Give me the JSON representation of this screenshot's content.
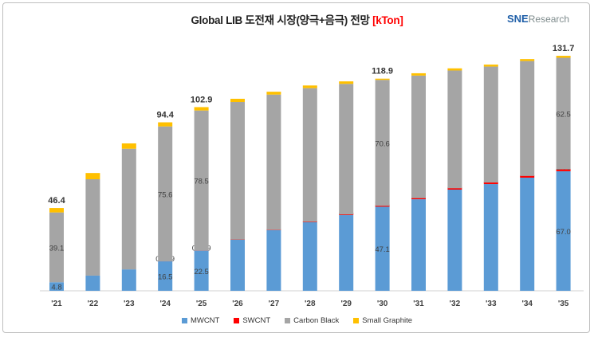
{
  "title": {
    "text": "Global LIB 도전재 시장(양극+음극) 전망",
    "unit": "[kTon]"
  },
  "logo": {
    "brand": "SNE",
    "suffix": "Research"
  },
  "chart_data": {
    "type": "bar",
    "stacked": true,
    "title": "Global LIB 도전재 시장(양극+음극) 전망 [kTon]",
    "xlabel": "",
    "ylabel": "",
    "ylim": [
      0,
      135
    ],
    "grid": false,
    "legend_position": "bottom",
    "categories": [
      "'21",
      "'22",
      "'23",
      "'24",
      "'25",
      "'26",
      "'27",
      "'28",
      "'29",
      "'30",
      "'31",
      "'32",
      "'33",
      "'34",
      "'35"
    ],
    "series": [
      {
        "name": "MWCNT",
        "color": "#5B9BD5",
        "values": [
          4.8,
          8.5,
          12.0,
          16.5,
          22.5,
          28.6,
          34.0,
          38.4,
          42.4,
          47.1,
          51.3,
          56.7,
          59.8,
          63.4,
          67.0
        ],
        "labels": [
          "4.8",
          null,
          null,
          "16.5",
          "22.5",
          null,
          null,
          null,
          null,
          "47.1",
          null,
          null,
          null,
          null,
          "67.0"
        ]
      },
      {
        "name": "SWCNT",
        "color": "#FF0000",
        "values": [
          0,
          0,
          0,
          0.009,
          0.029,
          0.1,
          0.15,
          0.25,
          0.35,
          0.48,
          0.6,
          0.75,
          0.85,
          0.95,
          1.08
        ],
        "labels": [
          null,
          null,
          null,
          "0.009",
          "0.029",
          null,
          null,
          null,
          null,
          "0.48",
          null,
          null,
          null,
          null,
          "1.08"
        ]
      },
      {
        "name": "Carbon Black",
        "color": "#A5A5A5",
        "values": [
          39.1,
          54.0,
          67.6,
          75.6,
          78.5,
          77.1,
          75.8,
          74.9,
          73.2,
          70.6,
          68.7,
          66.0,
          65.0,
          64.4,
          62.5
        ],
        "labels": [
          "39.1",
          null,
          null,
          "75.6",
          "78.5",
          null,
          null,
          null,
          null,
          "70.6",
          null,
          null,
          null,
          null,
          "62.5"
        ]
      },
      {
        "name": "Small Graphite",
        "color": "#FFC000",
        "values": [
          2.5,
          3.5,
          3.0,
          2.3,
          1.9,
          1.8,
          1.6,
          1.5,
          1.4,
          0.7,
          1.3,
          1.2,
          1.1,
          1.1,
          1.1
        ],
        "labels": [
          null,
          null,
          null,
          null,
          null,
          null,
          null,
          null,
          null,
          null,
          null,
          null,
          null,
          null,
          null
        ]
      }
    ],
    "totals": [
      46.4,
      66.0,
      82.6,
      94.4,
      102.9,
      107.6,
      111.6,
      115.0,
      117.4,
      118.9,
      121.9,
      124.6,
      126.8,
      129.9,
      131.7
    ],
    "total_labels": [
      "46.4",
      null,
      null,
      "94.4",
      "102.9",
      null,
      null,
      null,
      null,
      "118.9",
      null,
      null,
      null,
      null,
      "131.7"
    ]
  }
}
